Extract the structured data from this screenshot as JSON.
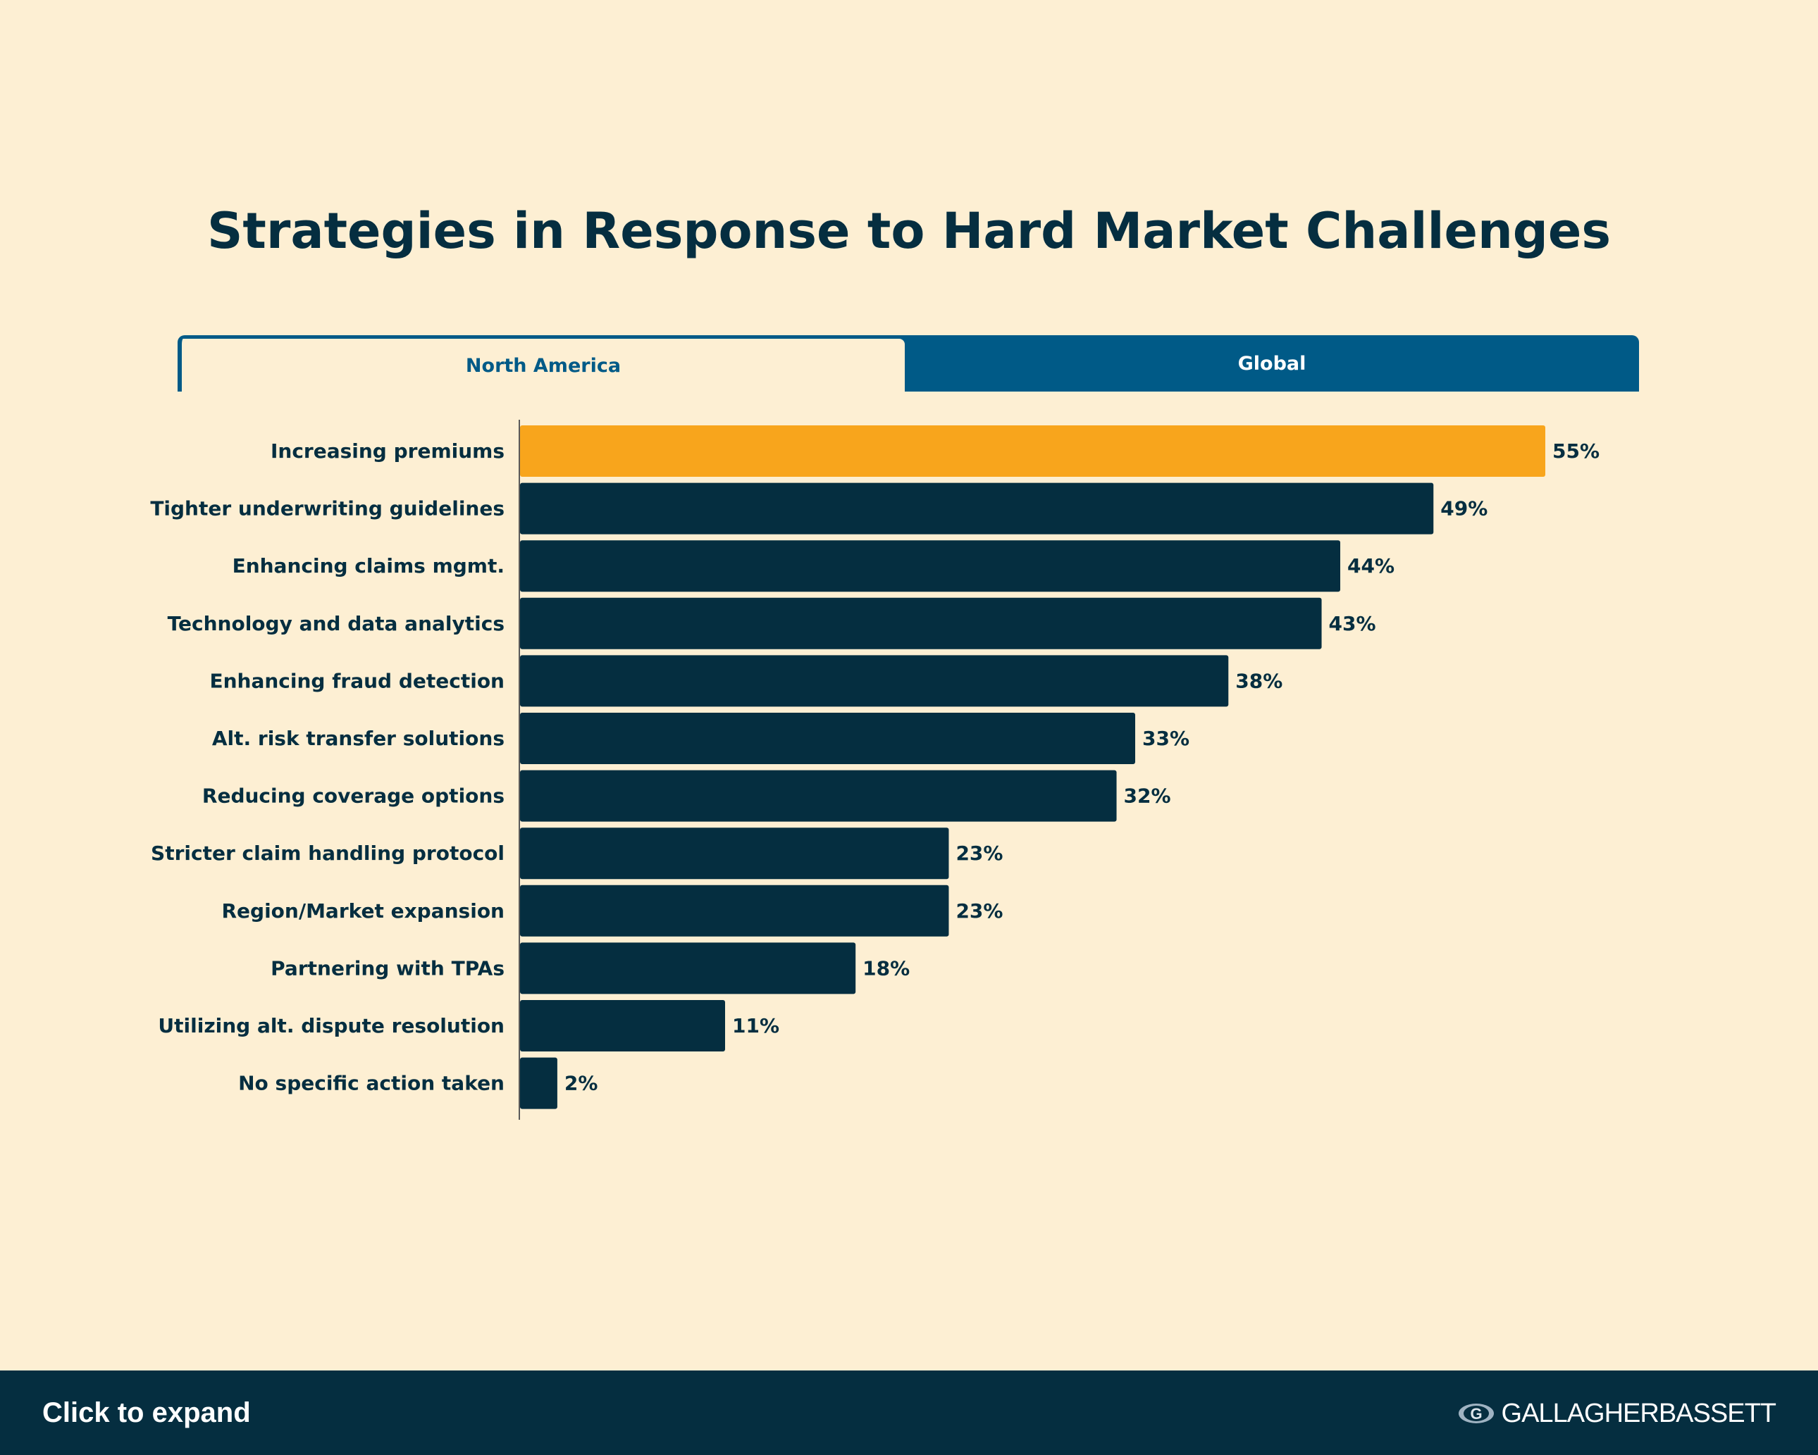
{
  "title": "Strategies in Response to Hard Market Challenges",
  "tabs": [
    {
      "label": "North America",
      "active": true
    },
    {
      "label": "Global",
      "active": false
    }
  ],
  "colors": {
    "background": "#FDEFD3",
    "bar": "#052E40",
    "highlight_bar": "#F8A51C",
    "tab_inactive": "#005A87",
    "text": "#052E40"
  },
  "chart_data": {
    "type": "bar",
    "orientation": "horizontal",
    "categories": [
      "Increasing premiums",
      "Tighter underwriting guidelines",
      "Enhancing claims mgmt.",
      "Technology and data analytics",
      "Enhancing fraud detection",
      "Alt. risk transfer solutions",
      "Reducing coverage options",
      "Stricter claim handling protocol",
      "Region/Market expansion",
      "Partnering with TPAs",
      "Utilizing alt. dispute resolution",
      "No specific action taken"
    ],
    "values": [
      55,
      49,
      44,
      43,
      38,
      33,
      32,
      23,
      23,
      18,
      11,
      2
    ],
    "value_labels": [
      "55%",
      "49%",
      "44%",
      "43%",
      "38%",
      "33%",
      "32%",
      "23%",
      "23%",
      "18%",
      "11%",
      "2%"
    ],
    "highlight_index": 0,
    "xlim": [
      0,
      55
    ],
    "xlabel": "",
    "ylabel": "",
    "grid": false,
    "legend": "none"
  },
  "footer": {
    "expand_label": "Click to expand",
    "logo_text": "GALLAGHERBASSETT"
  }
}
